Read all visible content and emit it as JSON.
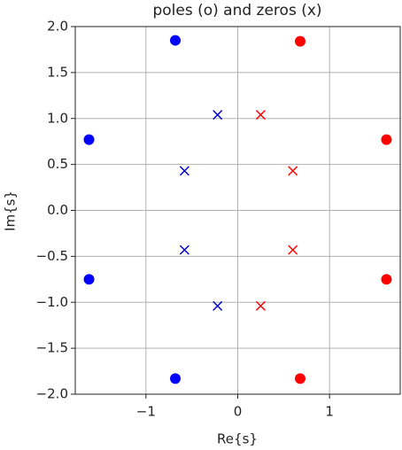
{
  "chart_data": {
    "type": "scatter",
    "title": "poles (o) and zeros (x)",
    "x_label": "Re{s}",
    "y_label": "Im{s}",
    "xlim": [
      -1.77,
      1.77
    ],
    "ylim": [
      -2.0,
      2.0
    ],
    "xticks": [
      {
        "value": -1,
        "label": "−1"
      },
      0,
      1
    ],
    "yticks": [
      {
        "value": 2.0,
        "label": "2.0"
      },
      {
        "value": 1.5,
        "label": "1.5"
      },
      {
        "value": 1.0,
        "label": "1.0"
      },
      {
        "value": 0.5,
        "label": "0.5"
      },
      {
        "value": 0.0,
        "label": "0.0"
      },
      {
        "value": -0.5,
        "label": "−0.5"
      },
      {
        "value": -1.0,
        "label": "−1.0"
      },
      {
        "value": -1.5,
        "label": "−1.5"
      },
      {
        "value": -2.0,
        "label": "−2.0"
      }
    ],
    "grid": true,
    "series": [
      {
        "marker": "o",
        "color": "#0000ff",
        "x": [
          -0.68,
          -1.62,
          -1.62,
          -0.68
        ],
        "y": [
          1.85,
          0.77,
          -0.75,
          -1.83
        ]
      },
      {
        "marker": "o",
        "color": "#ff0000",
        "x": [
          0.68,
          1.62,
          1.62,
          0.68
        ],
        "y": [
          1.84,
          0.77,
          -0.75,
          -1.83
        ]
      },
      {
        "marker": "x",
        "color": "#0000cc",
        "x": [
          -0.22,
          -0.58,
          -0.58,
          -0.22
        ],
        "y": [
          1.04,
          0.43,
          -0.43,
          -1.04
        ]
      },
      {
        "marker": "x",
        "color": "#ff0000",
        "x": [
          0.25,
          0.6,
          0.6,
          0.25
        ],
        "y": [
          1.04,
          0.43,
          -0.43,
          -1.04
        ]
      }
    ]
  }
}
